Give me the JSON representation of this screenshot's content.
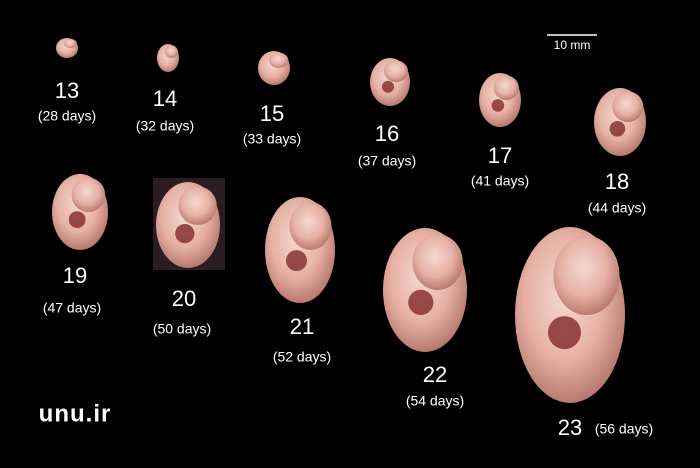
{
  "scale_bar": {
    "label": "10 mm"
  },
  "stages": [
    {
      "number": "13",
      "age": "(28 days)"
    },
    {
      "number": "14",
      "age": "(32 days)"
    },
    {
      "number": "15",
      "age": "(33 days)"
    },
    {
      "number": "16",
      "age": "(37 days)"
    },
    {
      "number": "17",
      "age": "(41 days)"
    },
    {
      "number": "18",
      "age": "(44 days)"
    },
    {
      "number": "19",
      "age": "(47 days)"
    },
    {
      "number": "20",
      "age": "(50 days)"
    },
    {
      "number": "21",
      "age": "(52 days)"
    },
    {
      "number": "22",
      "age": "(54 days)"
    },
    {
      "number": "23",
      "age": "(56 days)"
    }
  ],
  "watermark": "unu.ir"
}
